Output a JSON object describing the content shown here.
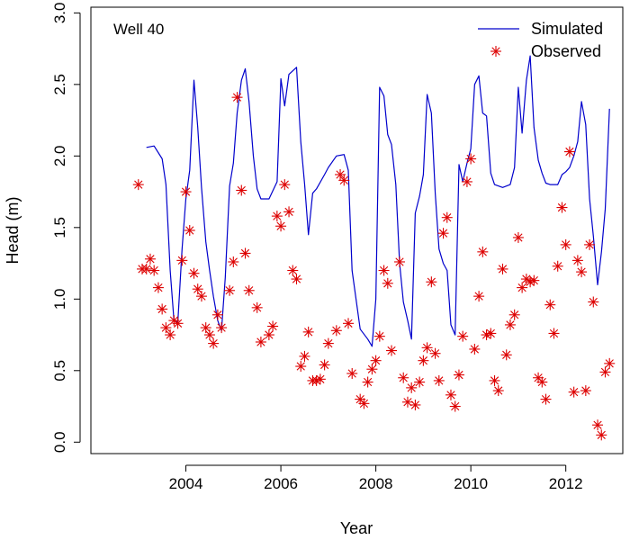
{
  "chart_data": {
    "type": "line",
    "annotation": "Well 40",
    "xlabel": "Year",
    "ylabel": "Head (m)",
    "xlim": [
      2002.0,
      2013.2
    ],
    "ylim": [
      -0.08,
      3.04
    ],
    "xticks": [
      2004,
      2006,
      2008,
      2010,
      2012
    ],
    "yticks": [
      "0.0",
      "0.5",
      "1.0",
      "1.5",
      "2.0",
      "2.5",
      "3.0"
    ],
    "legend_position": "top-right",
    "colors": {
      "Simulated": "#0000cc",
      "Observed": "#dd0000"
    },
    "series": [
      {
        "name": "Simulated",
        "type": "line",
        "x": [
          2003.17,
          2003.33,
          2003.5,
          2003.58,
          2003.67,
          2003.75,
          2003.83,
          2003.92,
          2004.0,
          2004.08,
          2004.17,
          2004.25,
          2004.33,
          2004.42,
          2004.5,
          2004.58,
          2004.67,
          2004.75,
          2004.83,
          2004.92,
          2005.0,
          2005.08,
          2005.17,
          2005.25,
          2005.33,
          2005.42,
          2005.5,
          2005.58,
          2005.75,
          2005.92,
          2006.0,
          2006.08,
          2006.17,
          2006.33,
          2006.42,
          2006.5,
          2006.58,
          2006.67,
          2006.75,
          2006.92,
          2007.0,
          2007.17,
          2007.33,
          2007.42,
          2007.5,
          2007.67,
          2007.83,
          2007.92,
          2008.0,
          2008.08,
          2008.17,
          2008.25,
          2008.33,
          2008.42,
          2008.5,
          2008.58,
          2008.67,
          2008.75,
          2008.83,
          2008.92,
          2009.0,
          2009.08,
          2009.17,
          2009.25,
          2009.33,
          2009.42,
          2009.5,
          2009.58,
          2009.67,
          2009.75,
          2009.83,
          2009.92,
          2010.0,
          2010.08,
          2010.17,
          2010.25,
          2010.33,
          2010.42,
          2010.5,
          2010.67,
          2010.83,
          2010.92,
          2011.0,
          2011.08,
          2011.17,
          2011.25,
          2011.33,
          2011.42,
          2011.5,
          2011.58,
          2011.67,
          2011.83,
          2011.92,
          2012.0,
          2012.08,
          2012.17,
          2012.25,
          2012.33,
          2012.42,
          2012.5,
          2012.58,
          2012.67,
          2012.75,
          2012.83,
          2012.92
        ],
        "y": [
          2.06,
          2.07,
          1.98,
          1.8,
          1.2,
          0.85,
          0.84,
          1.35,
          1.7,
          1.9,
          2.53,
          2.2,
          1.78,
          1.4,
          1.2,
          1.02,
          0.85,
          0.78,
          1.15,
          1.79,
          1.95,
          2.3,
          2.53,
          2.61,
          2.38,
          2.0,
          1.77,
          1.7,
          1.7,
          1.82,
          2.54,
          2.35,
          2.57,
          2.62,
          2.1,
          1.8,
          1.45,
          1.74,
          1.77,
          1.87,
          1.92,
          2.0,
          2.01,
          1.9,
          1.2,
          0.79,
          0.72,
          0.67,
          1.0,
          2.48,
          2.42,
          2.15,
          2.08,
          1.8,
          1.25,
          0.98,
          0.85,
          0.72,
          1.6,
          1.72,
          1.87,
          2.43,
          2.3,
          1.74,
          1.35,
          1.25,
          1.2,
          0.82,
          0.75,
          1.94,
          1.82,
          1.95,
          2.05,
          2.5,
          2.56,
          2.3,
          2.28,
          1.88,
          1.8,
          1.78,
          1.8,
          1.92,
          2.48,
          2.16,
          2.53,
          2.7,
          2.2,
          1.97,
          1.88,
          1.81,
          1.8,
          1.8,
          1.87,
          1.89,
          1.92,
          2.0,
          2.1,
          2.38,
          2.22,
          1.7,
          1.44,
          1.1,
          1.33,
          1.63,
          2.33
        ]
      },
      {
        "name": "Observed",
        "type": "scatter",
        "marker": "asterisk",
        "x": [
          2003.0,
          2003.08,
          2003.17,
          2003.25,
          2003.33,
          2003.42,
          2003.5,
          2003.58,
          2003.67,
          2003.75,
          2003.83,
          2003.92,
          2004.0,
          2004.08,
          2004.17,
          2004.25,
          2004.33,
          2004.42,
          2004.5,
          2004.58,
          2004.67,
          2004.75,
          2004.92,
          2005.0,
          2005.08,
          2005.17,
          2005.25,
          2005.33,
          2005.5,
          2005.58,
          2005.75,
          2005.83,
          2005.92,
          2006.0,
          2006.08,
          2006.17,
          2006.25,
          2006.33,
          2006.42,
          2006.5,
          2006.58,
          2006.67,
          2006.75,
          2006.83,
          2006.92,
          2007.0,
          2007.17,
          2007.25,
          2007.33,
          2007.42,
          2007.5,
          2007.67,
          2007.75,
          2007.83,
          2007.92,
          2008.0,
          2008.08,
          2008.17,
          2008.25,
          2008.33,
          2008.5,
          2008.58,
          2008.67,
          2008.75,
          2008.83,
          2008.92,
          2009.0,
          2009.08,
          2009.17,
          2009.25,
          2009.33,
          2009.42,
          2009.5,
          2009.58,
          2009.67,
          2009.75,
          2009.83,
          2009.92,
          2010.0,
          2010.08,
          2010.17,
          2010.25,
          2010.33,
          2010.42,
          2010.5,
          2010.58,
          2010.67,
          2010.75,
          2010.83,
          2010.92,
          2011.0,
          2011.08,
          2011.17,
          2011.25,
          2011.33,
          2011.42,
          2011.5,
          2011.58,
          2011.67,
          2011.75,
          2011.83,
          2011.92,
          2012.0,
          2012.08,
          2012.17,
          2012.25,
          2012.33,
          2012.42,
          2012.5,
          2012.58,
          2012.67,
          2012.75,
          2012.83,
          2012.92
        ],
        "y": [
          1.8,
          1.21,
          1.21,
          1.28,
          1.2,
          1.08,
          0.93,
          0.8,
          0.75,
          0.85,
          0.83,
          1.27,
          1.75,
          1.48,
          1.18,
          1.07,
          1.02,
          0.8,
          0.75,
          0.69,
          0.89,
          0.8,
          1.06,
          1.26,
          2.41,
          1.76,
          1.32,
          1.06,
          0.94,
          0.7,
          0.75,
          0.81,
          1.58,
          1.51,
          1.8,
          1.61,
          1.2,
          1.14,
          0.53,
          0.6,
          0.77,
          0.43,
          0.43,
          0.44,
          0.54,
          0.69,
          0.78,
          1.87,
          1.83,
          0.83,
          0.48,
          0.3,
          0.27,
          0.42,
          0.51,
          0.57,
          0.74,
          1.2,
          1.11,
          0.64,
          1.26,
          0.45,
          0.28,
          0.38,
          0.26,
          0.42,
          0.57,
          0.66,
          1.12,
          0.62,
          0.43,
          1.46,
          1.57,
          0.33,
          0.25,
          0.47,
          0.74,
          1.82,
          1.98,
          0.65,
          1.02,
          1.33,
          0.75,
          0.76,
          0.43,
          0.36,
          1.21,
          0.61,
          0.82,
          0.89,
          1.43,
          1.08,
          1.14,
          1.12,
          1.13,
          0.45,
          0.42,
          0.3,
          0.96,
          0.76,
          1.23,
          1.64,
          1.38,
          2.03,
          0.35,
          1.27,
          1.19,
          0.36,
          1.38,
          0.98,
          0.12,
          0.05,
          0.49,
          0.55
        ]
      }
    ]
  }
}
